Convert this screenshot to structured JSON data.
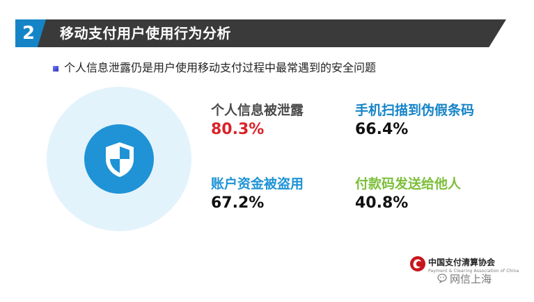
{
  "header": {
    "number": "2",
    "title": "移动支付用户使用行为分析"
  },
  "subtitle": "个人信息泄露仍是用户使用移动支付过程中最常遇到的安全问题",
  "stats": [
    {
      "label": "个人信息被泄露",
      "value": "80.3%",
      "label_color": "#4a4a4a",
      "value_color": "#d9232a"
    },
    {
      "label": "手机扫描到伪假条码",
      "value": "66.4%",
      "label_color": "#1584c7",
      "value_color": "#111111"
    },
    {
      "label": "账户资金被盗用",
      "value": "67.2%",
      "label_color": "#1f93d6",
      "value_color": "#111111"
    },
    {
      "label": "付款码发送给他人",
      "value": "40.8%",
      "label_color": "#7cbf3a",
      "value_color": "#111111"
    }
  ],
  "icon": {
    "center": "shield-icon"
  },
  "logo": {
    "name_cn": "中国支付清算协会",
    "name_en": "Payment & Clearing Association of China"
  },
  "watermark": "网信上海",
  "colors": {
    "title_bar": "#3a3a3a",
    "accent_blue": "#1584c7",
    "circle_light": "#e3f3fc",
    "circle_dark": "#1f93d6",
    "red": "#d9232a",
    "green": "#7cbf3a"
  }
}
